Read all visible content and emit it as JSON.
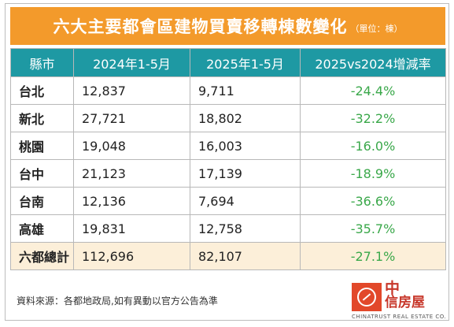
{
  "title": {
    "main": "六大主要都會區建物買賣移轉棟數變化",
    "unit": "（單位：棟）"
  },
  "table": {
    "headers": [
      "縣市",
      "2024年1-5月",
      "2025年1-5月",
      "2025vs2024增減率"
    ],
    "rows": [
      {
        "city": "台北",
        "y2024": "12,837",
        "y2025": "9,711",
        "change": "-24.4%"
      },
      {
        "city": "新北",
        "y2024": "27,721",
        "y2025": "18,802",
        "change": "-32.2%"
      },
      {
        "city": "桃園",
        "y2024": "19,048",
        "y2025": "16,003",
        "change": "-16.0%"
      },
      {
        "city": "台中",
        "y2024": "21,123",
        "y2025": "17,139",
        "change": "-18.9%"
      },
      {
        "city": "台南",
        "y2024": "12,136",
        "y2025": "7,694",
        "change": "-36.6%"
      },
      {
        "city": "高雄",
        "y2024": "19,831",
        "y2025": "12,758",
        "change": "-35.7%"
      }
    ],
    "total": {
      "city": "六都總計",
      "y2024": "112,696",
      "y2025": "82,107",
      "change": "-27.1%"
    }
  },
  "source": "資料來源：各都地政局,如有異動以官方公告為準",
  "logo": {
    "name_top": "中",
    "name_bottom": "信房屋",
    "sub": "CHINATRUST REAL ESTATE CO."
  },
  "colors": {
    "title_bg": "#f39a2b",
    "header_bg": "#1e99a3",
    "total_bg": "#fcefd9",
    "change_text": "#3aa84a",
    "logo_red": "#e2482a"
  }
}
